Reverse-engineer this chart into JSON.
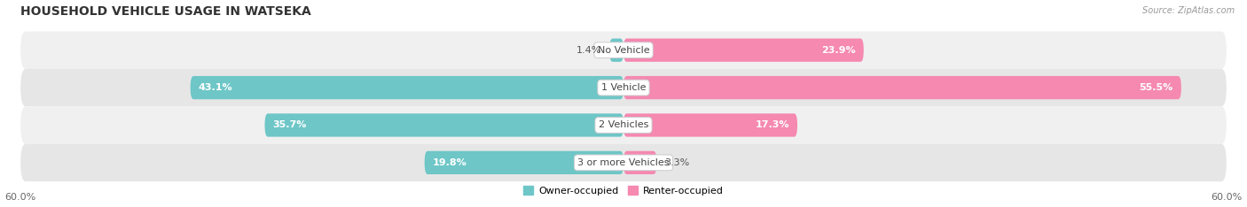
{
  "title": "HOUSEHOLD VEHICLE USAGE IN WATSEKA",
  "source": "Source: ZipAtlas.com",
  "categories": [
    "No Vehicle",
    "1 Vehicle",
    "2 Vehicles",
    "3 or more Vehicles"
  ],
  "owner_values": [
    1.4,
    43.1,
    35.7,
    19.8
  ],
  "renter_values": [
    23.9,
    55.5,
    17.3,
    3.3
  ],
  "owner_color": "#6ec6c7",
  "renter_color": "#f589b0",
  "row_bg_even": "#f0f0f0",
  "row_bg_odd": "#e6e6e6",
  "axis_limit": 60.0,
  "legend_owner": "Owner-occupied",
  "legend_renter": "Renter-occupied",
  "title_fontsize": 10,
  "label_fontsize": 8,
  "category_fontsize": 8,
  "bar_height": 0.62
}
